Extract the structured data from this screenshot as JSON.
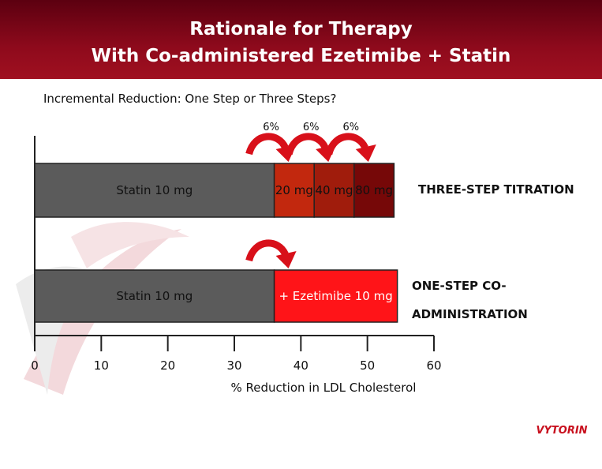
{
  "chart_data": {
    "type": "stacked-barh",
    "title": "Rationale for Therapy",
    "subtitle": "With Co-administered Ezetimibe + Statin",
    "caption": "Incremental Reduction: One Step or Three Steps?",
    "xlabel": "% Reduction in LDL Cholesterol",
    "xlim": [
      0,
      60
    ],
    "xticks": [
      0,
      10,
      20,
      30,
      40,
      50,
      60
    ],
    "bars": [
      {
        "category": "THREE-STEP TITRATION",
        "segments": [
          {
            "label": "Statin 10 mg",
            "value": 36,
            "color": "#5b5b5b"
          },
          {
            "label": "20 mg",
            "value": 6,
            "value_label": "6%",
            "color": "#c2280e"
          },
          {
            "label": "40 mg",
            "value": 6,
            "value_label": "6%",
            "color": "#a01c0c"
          },
          {
            "label": "80 mg",
            "value": 6,
            "value_label": "6%",
            "color": "#760808"
          }
        ]
      },
      {
        "category": "ONE-STEP CO-ADMINISTRATION",
        "segments": [
          {
            "label": "Statin 10 mg",
            "value": 36,
            "color": "#5b5b5b"
          },
          {
            "label": "+ Ezetimibe 10 mg",
            "value": 18.5,
            "color": "#ff1418"
          }
        ]
      }
    ],
    "logo": "VYTORIN"
  }
}
